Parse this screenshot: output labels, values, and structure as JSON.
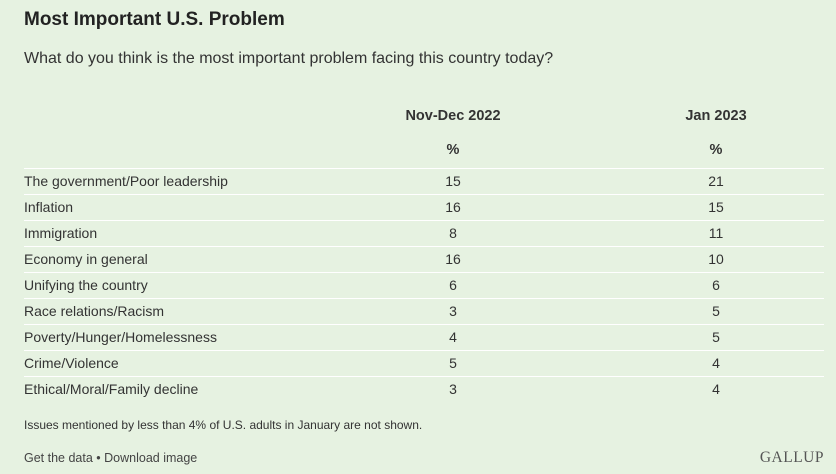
{
  "title": "Most Important U.S. Problem",
  "subtitle": "What do you think is the most important problem facing this country today?",
  "columns": [
    "Nov-Dec 2022",
    "Jan 2023"
  ],
  "unit": "%",
  "note": "Issues mentioned by less than 4% of U.S. adults in January are not shown.",
  "footer": {
    "get_data": "Get the data",
    "separator": " • ",
    "download": "Download image"
  },
  "logo": "GALLUP",
  "chart_data": {
    "type": "table",
    "title": "Most Important U.S. Problem",
    "subtitle": "What do you think is the most important problem facing this country today?",
    "categories": [
      "The government/Poor leadership",
      "Inflation",
      "Immigration",
      "Economy in general",
      "Unifying the country",
      "Race relations/Racism",
      "Poverty/Hunger/Homelessness",
      "Crime/Violence",
      "Ethical/Moral/Family decline"
    ],
    "series": [
      {
        "name": "Nov-Dec 2022",
        "values": [
          15,
          16,
          8,
          16,
          6,
          3,
          4,
          5,
          3
        ]
      },
      {
        "name": "Jan 2023",
        "values": [
          21,
          15,
          11,
          10,
          6,
          5,
          5,
          4,
          4
        ]
      }
    ]
  }
}
